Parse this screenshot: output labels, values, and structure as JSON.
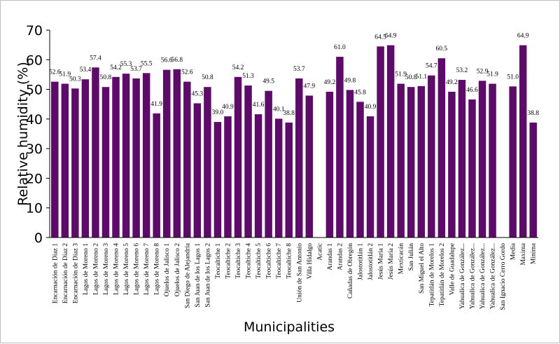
{
  "chart_data": {
    "type": "bar",
    "title": "",
    "xlabel": "Municipalities",
    "ylabel": "Relative humidity (%)",
    "ylim": [
      0,
      70
    ],
    "yticks": [
      0,
      10,
      20,
      30,
      40,
      50,
      60,
      70
    ],
    "grid": false,
    "legend": "none",
    "bar_color": "#5e0a6a",
    "categories": [
      "Encarnación de Díaz 1",
      "Encarnación de Díaz 2",
      "Encarnación de Díaz 3",
      "Lagos de Moreno 1",
      "Lagos de Moreno 2",
      "Lagos de Moreno 3",
      "Lagos de Moreno 4",
      "Lagos de Moreno 5",
      "Lagos de Moreno 6",
      "Lagos de Moreno 7",
      "Lagos de Moreno 8",
      "Ojuelos de Jalisco 1",
      "Ojuelos de Jalisco 2",
      "San Diego de Alejandría",
      "San Juan de los Lagos 1",
      "San Juan de los Lagos 2",
      "Teocaltiche 1",
      "Teocaltiche 2",
      "Teocaltiche 3",
      "Teocaltiche 4",
      "Teocaltiche 5",
      "Teocaltiche 6",
      "Teocaltiche 7",
      "Teocaltiche 8",
      "Unión de San Antonio",
      "Villa Hidalgo",
      "Acatic",
      "Arandas 1",
      "Arandas 2",
      "Cañadas de Obregón",
      "Jalostotitlán 1",
      "Jalostotitlán 2",
      "Jesús María 1",
      "Jesús María 2",
      "Mexticacán",
      "San Julián",
      "San Miguel el Alto",
      "Tepatitlán de Morelos 1",
      "Tepatitlán de Morelos 2",
      "Valle de Guadalupe",
      "Yahualica de González...",
      "Yahualica de González...",
      "Yahualica de González...",
      "Yahualica de González...",
      "San Ignacio Cerro Gordo",
      "Media",
      "Maxima",
      "Minima"
    ],
    "values": [
      52.6,
      51.9,
      50.3,
      53.4,
      57.4,
      50.8,
      54.2,
      55.3,
      53.7,
      55.5,
      41.9,
      56.6,
      56.8,
      52.6,
      45.3,
      50.8,
      39.0,
      40.9,
      54.2,
      51.3,
      41.6,
      49.5,
      40.1,
      38.8,
      53.7,
      47.9,
      null,
      49.2,
      61.0,
      49.8,
      45.8,
      40.9,
      64.5,
      64.9,
      51.9,
      50.8,
      51.1,
      54.7,
      60.5,
      49.2,
      53.2,
      46.6,
      52.9,
      51.9,
      null,
      51.0,
      64.9,
      38.8
    ],
    "data_labels": [
      "52.6",
      "51.9",
      "50.3",
      "53.4",
      "57.4",
      "50.8",
      "54.2",
      "55.3",
      "53.7",
      "55.5",
      "41.9",
      "56.6",
      "56.8",
      "52.6",
      "45.3",
      "50.8",
      "39.0",
      "40.9",
      "54.2",
      "51.3",
      "41.6",
      "49.5",
      "40.1",
      "38.8",
      "53.7",
      "47.9",
      "",
      "49.2",
      "61.0",
      "49.8",
      "45.8",
      "40.9",
      "64.5",
      "64.9",
      "51.9",
      "50.8",
      "51.1",
      "54.7",
      "60.5",
      "49.2",
      "53.2",
      "46.6",
      "52.9",
      "51.9",
      "",
      "51.0",
      "64.9",
      "38.8"
    ]
  }
}
